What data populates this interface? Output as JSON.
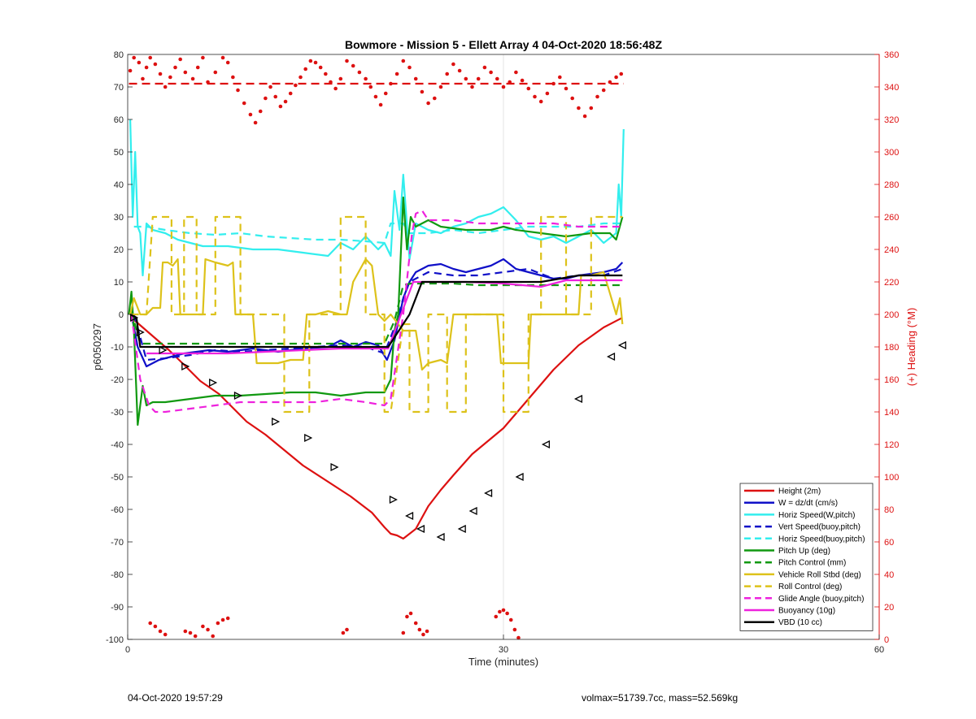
{
  "chart_data": {
    "type": "line",
    "title": "Bowmore - Mission 5 - Ellett Array 4 04-Oct-2020 18:56:48Z",
    "xlabel": "Time (minutes)",
    "ylabel": "p6050297",
    "y2label": "(+) Heading (°M)",
    "xlim": [
      0,
      60
    ],
    "ylim": [
      -100,
      80
    ],
    "y2lim": [
      0,
      360
    ],
    "xticks": [
      0,
      30,
      60
    ],
    "yticks": [
      80,
      70,
      60,
      50,
      40,
      30,
      20,
      10,
      0,
      -10,
      -20,
      -30,
      -40,
      -50,
      -60,
      -70,
      -80,
      -90,
      -100
    ],
    "y2ticks": [
      360,
      340,
      320,
      300,
      280,
      260,
      240,
      220,
      200,
      180,
      160,
      140,
      120,
      100,
      80,
      60,
      40,
      20,
      0
    ],
    "grid": "x-only",
    "legend_position": "lower-right",
    "colors": {
      "red": "#dd1111",
      "blue": "#1010c8",
      "cyan": "#33eeee",
      "green": "#119911",
      "yellow": "#ddc21a",
      "magenta": "#ee22dd",
      "black": "#000000",
      "heading": "#dd1111"
    },
    "series": [
      {
        "name": "Height (2m)",
        "color": "#dd1111",
        "dash": "solid",
        "x": [
          0.3,
          1.8,
          3.3,
          4.5,
          5.8,
          7.3,
          9.5,
          11,
          14,
          17.8,
          19.5,
          20.5,
          21,
          21.5,
          22,
          23,
          24,
          25,
          26,
          27.5,
          30,
          32,
          34,
          36,
          38,
          39.5
        ],
        "y": [
          -1,
          -6,
          -11,
          -15.5,
          -20.5,
          -24.5,
          -33,
          -37,
          -46.5,
          -56,
          -61,
          -65.5,
          -67.5,
          -68,
          -69,
          -66,
          -59,
          -54,
          -49.5,
          -43,
          -35,
          -26,
          -17,
          -9.5,
          -4,
          -1
        ]
      },
      {
        "name": "W = dz/dt (cm/s)",
        "color": "#1010c8",
        "dash": "solid",
        "x": [
          0.3,
          0.8,
          1.5,
          2.5,
          3.5,
          4.5,
          5.5,
          6.5,
          8,
          10,
          12,
          14,
          16,
          17,
          18,
          19,
          20,
          20.7,
          21.3,
          22,
          22.5,
          23,
          24,
          25,
          26,
          27,
          28,
          29,
          30,
          31,
          32,
          33,
          34,
          35,
          36,
          37,
          38,
          39,
          39.5
        ],
        "y": [
          0,
          -10,
          -16,
          -14,
          -13,
          -12,
          -11.5,
          -11,
          -11.5,
          -10.5,
          -11.5,
          -10.5,
          -10,
          -8,
          -10,
          -8.5,
          -9.5,
          -14,
          -8,
          5,
          10,
          13,
          15,
          15.5,
          14,
          13,
          14,
          15,
          17,
          14,
          13,
          12,
          11,
          11,
          12,
          12.5,
          13,
          14,
          16
        ]
      },
      {
        "name": "Horiz Speed(W,pitch)",
        "color": "#33eeee",
        "dash": "solid",
        "x": [
          0.2,
          0.4,
          0.6,
          0.8,
          1.0,
          1.2,
          1.5,
          2.0,
          3.0,
          4.0,
          5.0,
          6.0,
          8.0,
          10,
          12,
          14,
          16,
          17,
          18,
          19,
          20,
          20.5,
          21,
          21.3,
          21.7,
          22,
          22.5,
          23,
          24,
          25,
          26,
          27,
          28,
          29,
          30,
          31,
          32,
          33,
          34,
          35,
          36,
          37,
          38,
          39,
          39.2,
          39.4,
          39.6
        ],
        "y": [
          60,
          30,
          50,
          27,
          25,
          12,
          28,
          26,
          25,
          23,
          22,
          21,
          21,
          20,
          20,
          19,
          18,
          22,
          20,
          24,
          20,
          22,
          18,
          38,
          26,
          43,
          17,
          28,
          26,
          25,
          27,
          28,
          30,
          31,
          33,
          29,
          24,
          23,
          24,
          22,
          24,
          26,
          22,
          25,
          40,
          30,
          57
        ]
      },
      {
        "name": "Vert Speed(buoy,pitch)",
        "color": "#1010c8",
        "dash": "dashed",
        "x": [
          0.5,
          1.5,
          3,
          5,
          7,
          9,
          11,
          13,
          15,
          17,
          19,
          20.5,
          21.5,
          22,
          22.5,
          23,
          24,
          26,
          28,
          30,
          32,
          34,
          36,
          38,
          39.5
        ],
        "y": [
          0,
          -14,
          -13.5,
          -12.5,
          -11,
          -11.5,
          -11,
          -10.5,
          -10,
          -9.5,
          -10,
          -12,
          -2,
          5,
          10,
          11,
          13,
          12,
          12,
          13,
          14,
          11,
          12,
          12,
          14
        ]
      },
      {
        "name": "Horiz Speed(buoy,pitch)",
        "color": "#33eeee",
        "dash": "dashed",
        "x": [
          0.5,
          1.5,
          3,
          5,
          7,
          9,
          11,
          13,
          15,
          17,
          19,
          20.5,
          21,
          22,
          22.5,
          23,
          24,
          26,
          28,
          30,
          32,
          34,
          36,
          38,
          39.5
        ],
        "y": [
          27,
          27,
          26,
          25,
          24.5,
          25,
          24,
          23.5,
          23,
          23,
          22.5,
          22,
          28,
          28,
          25,
          25,
          25,
          26,
          25,
          26,
          27,
          27,
          27,
          28,
          28
        ]
      },
      {
        "name": "Pitch Up (deg)",
        "color": "#119911",
        "dash": "solid",
        "x": [
          0.1,
          0.3,
          0.5,
          0.8,
          1.2,
          1.5,
          2.0,
          3.0,
          5.0,
          7.0,
          9.0,
          11,
          13,
          15,
          17,
          19,
          20.5,
          21.0,
          21.3,
          21.6,
          22.0,
          22.3,
          22.6,
          23.0,
          24.0,
          25.0,
          27.0,
          29.0,
          30.0,
          31.0,
          33.0,
          35.0,
          37.0,
          38.5,
          39.0,
          39.5
        ],
        "y": [
          0,
          7,
          -5,
          -34,
          -22,
          -28,
          -27,
          -27,
          -26,
          -25,
          -25,
          -24.5,
          -24,
          -24,
          -25,
          -24,
          -24,
          -20,
          -5,
          0,
          36,
          20,
          30,
          27,
          29,
          27,
          26,
          26,
          27,
          26,
          25,
          24,
          25,
          25,
          23,
          30
        ]
      },
      {
        "name": "Pitch Control (mm)",
        "color": "#119911",
        "dash": "dashed",
        "x": [
          0.3,
          1.0,
          2,
          5,
          8,
          11,
          14,
          17,
          20.5,
          21.3,
          22,
          22.6,
          23,
          24,
          26,
          28,
          30,
          32,
          34,
          36,
          38,
          39.5
        ],
        "y": [
          1,
          -9,
          -9,
          -9,
          -9,
          -9,
          -9,
          -9,
          -9,
          -2,
          9,
          9.5,
          9.5,
          9.5,
          9.5,
          9,
          9,
          9,
          9,
          9,
          9,
          9
        ]
      },
      {
        "name": "Vehicle Roll Stbd (deg)",
        "color": "#ddc21a",
        "dash": "solid",
        "x": [
          0.2,
          0.5,
          1.0,
          1.5,
          2.0,
          2.6,
          2.8,
          3.2,
          3.6,
          4.0,
          4.2,
          4.8,
          5.4,
          6.0,
          6.2,
          7.0,
          8.0,
          8.4,
          8.6,
          9.5,
          10,
          10.3,
          11,
          11.3,
          12,
          13,
          14,
          14.3,
          15,
          16,
          17,
          17.5,
          18,
          19,
          19.5,
          20,
          20.5,
          21.0,
          22,
          23,
          23.5,
          24,
          25,
          25.5,
          26,
          27,
          27.2,
          28,
          29.5,
          29.8,
          31,
          32,
          32.2,
          33,
          34,
          35,
          36,
          36.2,
          37,
          38,
          39.0,
          39.3,
          39.5
        ],
        "y": [
          0,
          5,
          0,
          0,
          2,
          2,
          16,
          16,
          15,
          17,
          0,
          0,
          0,
          0,
          17,
          16,
          15,
          16,
          0,
          0,
          0,
          -15,
          -15,
          -15,
          -15,
          -14,
          -14,
          0,
          0,
          1,
          0,
          0,
          10,
          17,
          15,
          0,
          -2,
          0,
          -5,
          -5,
          -17,
          -15,
          -14,
          -15,
          0,
          0,
          0,
          0,
          0,
          -15,
          -15,
          -15,
          0,
          0,
          0,
          0,
          0,
          12,
          12,
          13,
          0,
          5,
          -3
        ]
      },
      {
        "name": "Roll Control (deg)",
        "color": "#ddc21a",
        "dash": "dashed",
        "x": [
          0.3,
          1.0,
          1.5,
          2.0,
          2.3,
          3.5,
          3.5,
          4.5,
          4.5,
          5.5,
          5.5,
          7.0,
          7.0,
          9.0,
          9.0,
          12.5,
          12.5,
          13.5,
          13.5,
          14.5,
          14.5,
          17,
          17,
          19,
          19,
          20.5,
          20.5,
          21.0,
          22.0,
          22.5,
          22.5,
          24,
          24,
          25.5,
          25.5,
          27,
          27,
          30,
          30,
          32,
          32,
          33,
          33,
          35,
          35,
          37,
          37,
          39.5
        ],
        "y": [
          0,
          0,
          0,
          30,
          30,
          30,
          0,
          0,
          30,
          30,
          0,
          0,
          30,
          30,
          0,
          0,
          -30,
          -30,
          -30,
          -30,
          0,
          0,
          30,
          30,
          0,
          0,
          -30,
          -30,
          -3,
          -3,
          -30,
          -30,
          0,
          0,
          -30,
          -30,
          0,
          0,
          -30,
          -30,
          0,
          0,
          30,
          30,
          0,
          0,
          30,
          30
        ]
      },
      {
        "name": "Glide Angle (buoy,pitch)",
        "color": "#ee22dd",
        "dash": "dashed",
        "x": [
          0.3,
          1.0,
          1.7,
          2.2,
          3,
          5,
          7,
          9,
          11,
          13,
          15,
          17,
          19,
          20.5,
          21,
          22,
          22.7,
          23,
          23.5,
          24,
          26,
          28,
          30,
          32,
          34,
          36,
          38,
          39.5
        ],
        "y": [
          0,
          -20,
          -28,
          -30,
          -30,
          -29,
          -28,
          -27,
          -27,
          -27,
          -27,
          -26,
          -27,
          -28,
          -26,
          0,
          25,
          31,
          32,
          29,
          29,
          28,
          28,
          28,
          28,
          27,
          27,
          27
        ]
      },
      {
        "name": "Buoyancy (10g)",
        "color": "#ee22dd",
        "dash": "solid",
        "x": [
          1.5,
          3,
          5,
          8,
          11,
          14,
          17,
          20.8,
          22.8,
          24,
          27,
          30,
          33,
          35,
          39.5
        ],
        "y": [
          -12,
          -12,
          -12,
          -12,
          -11.5,
          -11,
          -10.5,
          -10.5,
          10,
          10,
          10,
          9.5,
          8.5,
          10.5,
          10.5
        ]
      },
      {
        "name": "VBD (10 cc)",
        "color": "#000000",
        "dash": "solid",
        "x": [
          0.2,
          0.7,
          1.0,
          5,
          10,
          15,
          20.8,
          22.5,
          23.5,
          25,
          30,
          33,
          34.5,
          36,
          39.5
        ],
        "y": [
          0,
          -1,
          -10,
          -10,
          -10,
          -10,
          -10,
          0,
          10,
          10,
          10,
          10,
          11,
          12,
          12
        ]
      }
    ],
    "heading_series": {
      "name": "Heading",
      "axis": "right",
      "mean": 342,
      "x": [
        0.2,
        0.5,
        0.9,
        1.2,
        1.5,
        1.8,
        2.2,
        2.6,
        3.0,
        3.4,
        3.8,
        4.2,
        4.6,
        5.2,
        5.6,
        6.0,
        6.4,
        7.0,
        7.6,
        8.0,
        8.4,
        8.8,
        9.3,
        9.8,
        10.2,
        10.6,
        11.0,
        11.4,
        11.8,
        12.2,
        12.6,
        13.0,
        13.4,
        13.8,
        14.2,
        14.6,
        15.0,
        15.4,
        15.8,
        16.2,
        16.6,
        17.0,
        17.5,
        18.0,
        18.5,
        19.0,
        19.4,
        19.8,
        20.2,
        20.6,
        21.0,
        21.5,
        22.0,
        22.5,
        23.0,
        23.5,
        24.0,
        24.5,
        25.0,
        25.5,
        26.0,
        26.5,
        27.0,
        27.5,
        28.0,
        28.5,
        29.0,
        29.5,
        30.0,
        30.5,
        31.0,
        31.5,
        32.0,
        32.5,
        33.0,
        33.5,
        34.0,
        34.5,
        35.0,
        35.5,
        36.0,
        36.5,
        37.0,
        37.5,
        38.0,
        38.5,
        39.0,
        39.4
      ],
      "y": [
        350,
        358,
        355,
        345,
        352,
        358,
        354,
        348,
        340,
        346,
        352,
        357,
        349,
        345,
        352,
        358,
        343,
        349,
        358,
        355,
        346,
        338,
        330,
        323,
        318,
        325,
        333,
        340,
        334,
        328,
        331,
        336,
        341,
        346,
        351,
        356,
        355,
        352,
        348,
        343,
        339,
        345,
        356,
        353,
        349,
        345,
        340,
        334,
        329,
        336,
        342,
        348,
        356,
        352,
        345,
        337,
        330,
        333,
        340,
        348,
        354,
        350,
        345,
        340,
        345,
        352,
        349,
        345,
        340,
        343,
        349,
        344,
        339,
        334,
        331,
        336,
        342,
        346,
        339,
        333,
        327,
        322,
        327,
        334,
        338,
        343,
        346,
        348
      ]
    },
    "low_heading_points": {
      "x": [
        1.8,
        2.2,
        2.6,
        3.0,
        4.6,
        5.0,
        5.4,
        6.0,
        6.4,
        6.8,
        7.2,
        7.6,
        8.0,
        17.2,
        17.5,
        22.0,
        22.3,
        22.6,
        23.0,
        23.3,
        23.6,
        23.9,
        29.4,
        29.7,
        30.0,
        30.3,
        30.6,
        30.9,
        31.2
      ],
      "y": [
        10,
        8,
        5,
        3,
        5,
        4,
        2,
        8,
        6,
        2,
        10,
        12,
        13,
        4,
        6,
        4,
        14,
        16,
        10,
        6,
        3,
        5,
        14,
        17,
        18,
        16,
        12,
        6,
        1
      ]
    },
    "markers": {
      "x": [
        0.5,
        1.0,
        2.8,
        4.6,
        6.8,
        8.8,
        11.8,
        14.4,
        16.5,
        21.2,
        22.5,
        23.4,
        25.0,
        26.7,
        27.6,
        28.8,
        31.3,
        33.4,
        36.0,
        38.6,
        39.5
      ],
      "y": [
        -1,
        -5.5,
        -11,
        -16,
        -21,
        -25,
        -33,
        -38,
        -47,
        -57,
        -62,
        -66,
        -68.5,
        -66,
        -60.5,
        -55,
        -50,
        -40,
        -26,
        -13,
        -9.5
      ]
    }
  },
  "footer": {
    "left": "04-Oct-2020 19:57:29",
    "right": "volmax=51739.7cc, mass=52.569kg"
  }
}
